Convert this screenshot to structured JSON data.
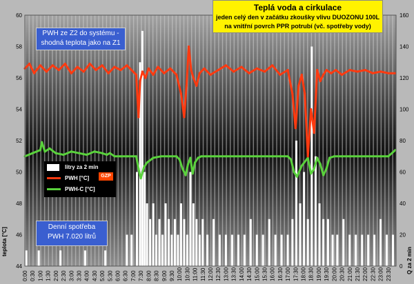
{
  "title": {
    "line1": "Teplá voda a cirkulace",
    "line2": "jeden celý den v začátku zkoušky vlivu DUOZONU 100L",
    "line3": "na vnitřní povrch PPR potrubí (vč. spotřeby vody)"
  },
  "note": {
    "line1": "PWH ze Z2 do systému -",
    "line2": "shodná teplota jako na Z1"
  },
  "stat": {
    "line1": "Denní spotřeba",
    "line2": "PWH   7.020 litrů"
  },
  "legend": {
    "flow": "litry za 2 min",
    "pwh": "PWH  [°C]",
    "pwhc": "PWH-C [°C]",
    "logo": "GZP"
  },
  "colors": {
    "pwh": "#ff3a10",
    "pwhc": "#5ad23c",
    "bars": "#ffffff",
    "background_top": "#9a9a9a",
    "background_mid": "#161616"
  },
  "chart_data": {
    "type": "line",
    "ylabel": "teplota [°C]",
    "y2label": "Q za 2 min",
    "ylim": [
      44,
      60
    ],
    "y2lim": [
      0,
      160
    ],
    "yticks": [
      "44",
      "46",
      "48",
      "50",
      "52",
      "54",
      "56",
      "58",
      "60"
    ],
    "y2ticks": [
      "0",
      "20",
      "40",
      "60",
      "80",
      "100",
      "120",
      "140",
      "160"
    ],
    "xtick_labels": [
      "0:00",
      "0:30",
      "1:00",
      "1:30",
      "2:00",
      "2:30",
      "3:00",
      "3:30",
      "4:00",
      "4:30",
      "5:00",
      "5:30",
      "6:00",
      "6:30",
      "7:00",
      "7:30",
      "8:00",
      "8:30",
      "9:00",
      "9:30",
      "10:00",
      "10:30",
      "11:00",
      "11:30",
      "12:00",
      "12:30",
      "13:00",
      "13:30",
      "14:00",
      "14:30",
      "15:00",
      "15:30",
      "16:00",
      "16:30",
      "17:00",
      "17:30",
      "18:00",
      "18:30",
      "19:00",
      "19:30",
      "20:00",
      "20:30",
      "21:00",
      "21:30",
      "22:00",
      "22:30",
      "23:00",
      "23:30"
    ],
    "grid": false,
    "series": [
      {
        "name": "PWH  [°C]",
        "axis": "left",
        "x": [
          0,
          0.3,
          0.6,
          1,
          1.4,
          1.8,
          2.2,
          2.6,
          3,
          3.4,
          3.8,
          4.2,
          4.6,
          5,
          5.4,
          5.8,
          6.2,
          6.6,
          7,
          7.2,
          7.35,
          7.45,
          7.6,
          7.8,
          8,
          8.3,
          8.6,
          9,
          9.4,
          9.8,
          10.1,
          10.3,
          10.45,
          10.6,
          10.75,
          10.9,
          11.1,
          11.3,
          11.6,
          12,
          12.5,
          13,
          13.5,
          14,
          14.5,
          15,
          15.5,
          16,
          16.5,
          17,
          17.3,
          17.5,
          17.7,
          17.9,
          18.1,
          18.3,
          18.5,
          18.7,
          18.9,
          19.1,
          19.3,
          19.5,
          19.8,
          20.1,
          20.5,
          21,
          21.5,
          22,
          22.5,
          23,
          23.5,
          23.95
        ],
        "y": [
          56.6,
          56.9,
          56.3,
          56.8,
          56.4,
          56.8,
          56.5,
          56.9,
          56.3,
          56.7,
          56.4,
          56.9,
          56.5,
          56.8,
          56.3,
          56.7,
          56.5,
          56.8,
          56.4,
          56.2,
          53.5,
          55.8,
          56.4,
          56.0,
          56.6,
          56.2,
          56.7,
          56.3,
          56.6,
          56.2,
          55.0,
          53.5,
          55.5,
          58.0,
          56.5,
          56.0,
          55.5,
          56.3,
          56.6,
          56.2,
          56.5,
          56.8,
          56.4,
          56.7,
          56.3,
          56.6,
          56.4,
          56.8,
          56.2,
          56.5,
          55.0,
          52.8,
          55.5,
          56.2,
          55.0,
          51.0,
          54.0,
          52.5,
          56.5,
          55.8,
          56.2,
          56.5,
          56.3,
          56.5,
          56.2,
          56.5,
          56.4,
          56.5,
          56.3,
          56.4,
          56.3,
          56.3
        ]
      },
      {
        "name": "PWH-C [°C]",
        "axis": "left",
        "x": [
          0,
          0.5,
          1,
          1.1,
          1.3,
          1.6,
          2,
          2.5,
          3,
          3.5,
          4,
          4.5,
          5,
          5.3,
          5.5,
          5.8,
          6.2,
          6.6,
          7,
          7.2,
          7.35,
          7.5,
          7.7,
          7.9,
          8.3,
          8.8,
          9.3,
          9.8,
          10,
          10.2,
          10.4,
          10.55,
          10.7,
          10.85,
          11.0,
          11.2,
          11.4,
          11.7,
          12.2,
          13,
          14,
          15,
          16,
          16.5,
          17,
          17.2,
          17.4,
          17.6,
          17.9,
          18.3,
          18.5,
          18.7,
          18.9,
          19.1,
          19.3,
          19.5,
          19.7,
          20,
          20.5,
          21,
          22,
          23,
          23.5,
          23.95
        ],
        "y": [
          51.0,
          51.2,
          51.4,
          51.9,
          51.3,
          51.5,
          51.2,
          51.1,
          51.3,
          51.2,
          51.1,
          51.3,
          51.2,
          51.1,
          51.2,
          51.0,
          51.0,
          51.0,
          51.0,
          51.0,
          50.2,
          49.6,
          50.3,
          50.6,
          50.9,
          51.0,
          51.0,
          51.0,
          50.8,
          50.2,
          49.8,
          50.5,
          50.9,
          49.9,
          50.6,
          50.9,
          51.0,
          51.0,
          51.0,
          51.0,
          51.0,
          51.0,
          51.0,
          51.0,
          51.0,
          50.8,
          50.0,
          49.7,
          50.4,
          50.9,
          49.9,
          50.2,
          50.9,
          50.5,
          49.8,
          50.2,
          50.9,
          51.0,
          51.0,
          51.0,
          51.0,
          51.0,
          51.0,
          51.4
        ]
      },
      {
        "name": "litry za 2 min",
        "axis": "right",
        "type": "bar",
        "x": [
          0.1,
          0.9,
          2.3,
          3.9,
          5.2,
          6.6,
          6.9,
          7.25,
          7.45,
          7.6,
          7.75,
          7.9,
          8.1,
          8.3,
          8.5,
          8.7,
          8.9,
          9.1,
          9.3,
          9.5,
          9.7,
          9.9,
          10.1,
          10.3,
          10.5,
          10.7,
          10.9,
          11.1,
          11.3,
          11.5,
          11.8,
          12.2,
          12.6,
          13.0,
          13.4,
          13.8,
          14.2,
          14.6,
          15.0,
          15.4,
          15.8,
          16.2,
          16.6,
          17.0,
          17.3,
          17.55,
          17.8,
          18.05,
          18.3,
          18.55,
          18.8,
          19.05,
          19.3,
          19.6,
          19.9,
          20.2,
          20.6,
          21.0,
          21.4,
          21.8,
          22.2,
          22.6,
          23.0,
          23.4,
          23.8
        ],
        "values": [
          10,
          10,
          10,
          10,
          10,
          20,
          20,
          60,
          130,
          150,
          60,
          40,
          30,
          40,
          20,
          30,
          20,
          40,
          30,
          20,
          30,
          20,
          40,
          30,
          20,
          60,
          40,
          30,
          20,
          30,
          20,
          30,
          20,
          20,
          20,
          20,
          20,
          30,
          20,
          20,
          30,
          20,
          20,
          20,
          30,
          80,
          40,
          60,
          30,
          140,
          70,
          40,
          30,
          30,
          20,
          20,
          30,
          20,
          20,
          20,
          20,
          20,
          30,
          20,
          20
        ]
      }
    ]
  }
}
